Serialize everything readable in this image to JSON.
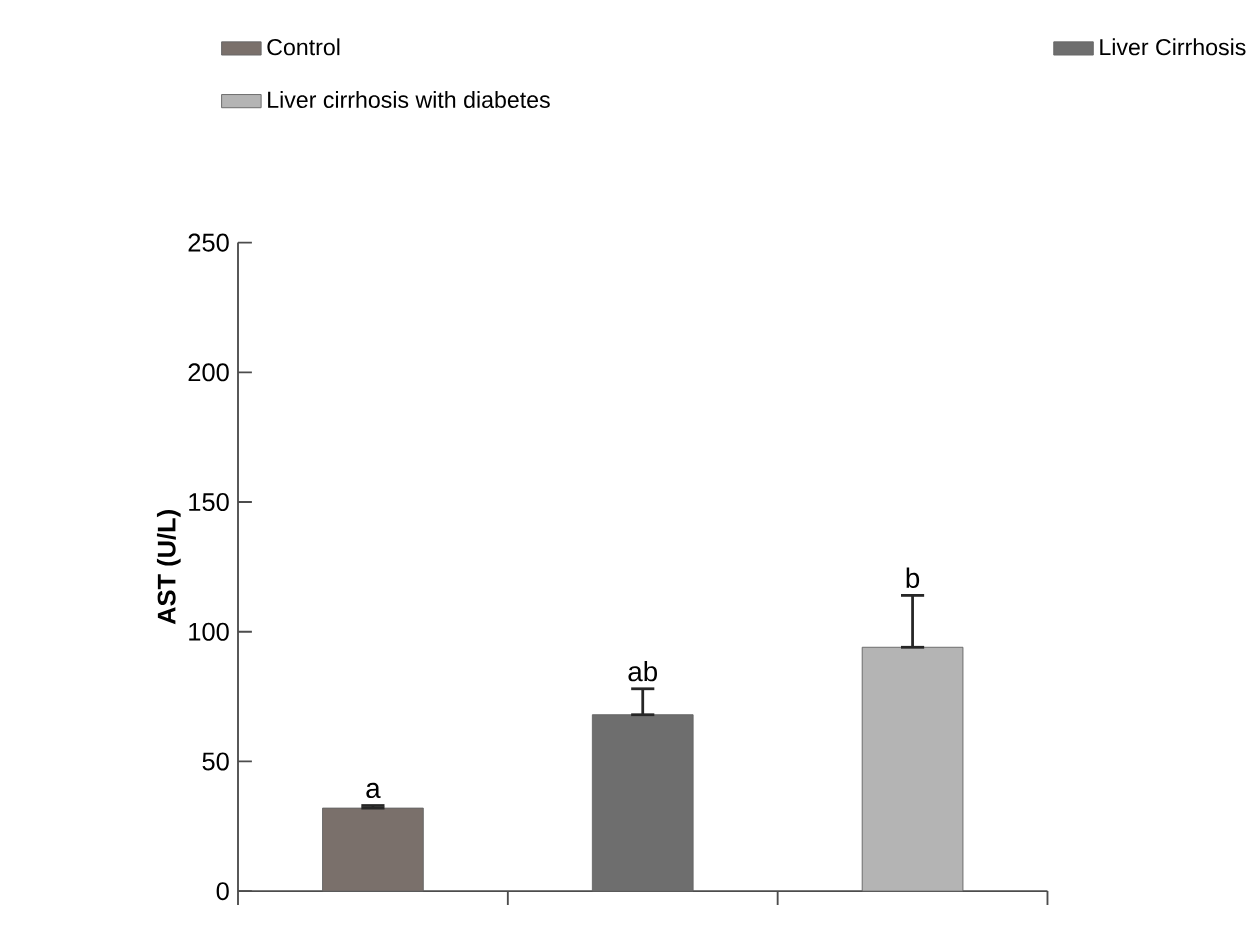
{
  "chart_data": {
    "type": "bar",
    "ylabel": "AST (U/L)",
    "categories": [
      null,
      null,
      null
    ],
    "series": [
      {
        "name": "Control",
        "color": "#7a706b",
        "values": [
          32,
          null,
          null
        ],
        "errors": [
          [
            32,
            33
          ],
          null,
          null
        ]
      },
      {
        "name": "Liver Cirrhosis",
        "color": "#6e6e6e",
        "values": [
          null,
          68,
          null
        ],
        "errors": [
          null,
          [
            68,
            78
          ],
          null
        ]
      },
      {
        "name": "Liver cirrhosis with diabetes",
        "color": "#b4b4b4",
        "values": [
          null,
          null,
          94
        ],
        "errors": [
          null,
          null,
          [
            94,
            114
          ]
        ]
      }
    ],
    "ylim": [
      0,
      250
    ],
    "yticks": [
      0,
      50,
      100,
      150,
      200,
      250
    ],
    "grid": false,
    "legend": "top",
    "tick_labels": "y",
    "annotations": [
      "a",
      "ab",
      "b"
    ]
  }
}
